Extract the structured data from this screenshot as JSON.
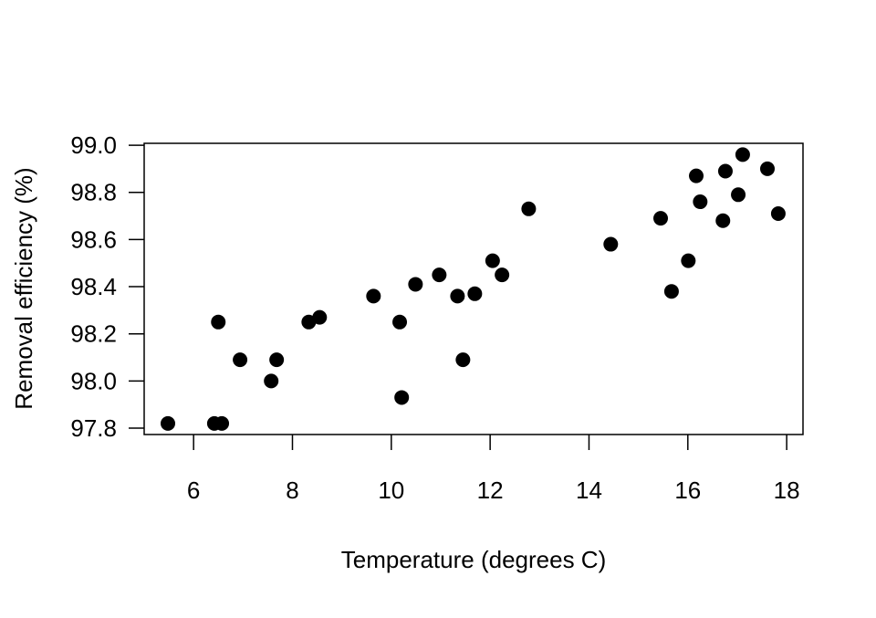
{
  "chart_data": {
    "type": "scatter",
    "title": "",
    "xlabel": "Temperature (degrees C)",
    "ylabel": "Removal efficiency (%)",
    "xlim": [
      5.0,
      18.33
    ],
    "ylim": [
      97.773,
      99.008
    ],
    "xticks": [
      6,
      8,
      10,
      12,
      14,
      16,
      18
    ],
    "xtick_labels": [
      "6",
      "8",
      "10",
      "12",
      "14",
      "16",
      "18"
    ],
    "yticks": [
      97.8,
      98.0,
      98.2,
      98.4,
      98.6,
      98.8,
      99.0
    ],
    "ytick_labels": [
      "97.8",
      "98.0",
      "98.2",
      "98.4",
      "98.6",
      "98.8",
      "99.0"
    ],
    "grid": false,
    "marker_color": "#000000",
    "points": [
      {
        "x": 5.48,
        "y": 97.82
      },
      {
        "x": 6.42,
        "y": 97.82
      },
      {
        "x": 6.57,
        "y": 97.82
      },
      {
        "x": 6.5,
        "y": 98.25
      },
      {
        "x": 6.94,
        "y": 98.09
      },
      {
        "x": 7.57,
        "y": 98.0
      },
      {
        "x": 7.68,
        "y": 98.09
      },
      {
        "x": 8.33,
        "y": 98.25
      },
      {
        "x": 8.55,
        "y": 98.27
      },
      {
        "x": 9.64,
        "y": 98.36
      },
      {
        "x": 10.17,
        "y": 98.25
      },
      {
        "x": 10.21,
        "y": 97.93
      },
      {
        "x": 10.49,
        "y": 98.41
      },
      {
        "x": 10.97,
        "y": 98.45
      },
      {
        "x": 11.34,
        "y": 98.36
      },
      {
        "x": 11.45,
        "y": 98.09
      },
      {
        "x": 11.69,
        "y": 98.37
      },
      {
        "x": 12.05,
        "y": 98.51
      },
      {
        "x": 12.24,
        "y": 98.45
      },
      {
        "x": 12.78,
        "y": 98.73
      },
      {
        "x": 14.44,
        "y": 98.58
      },
      {
        "x": 15.45,
        "y": 98.69
      },
      {
        "x": 15.67,
        "y": 98.38
      },
      {
        "x": 16.01,
        "y": 98.51
      },
      {
        "x": 16.17,
        "y": 98.87
      },
      {
        "x": 16.25,
        "y": 98.76
      },
      {
        "x": 16.71,
        "y": 98.68
      },
      {
        "x": 16.76,
        "y": 98.89
      },
      {
        "x": 17.02,
        "y": 98.79
      },
      {
        "x": 17.11,
        "y": 98.96
      },
      {
        "x": 17.61,
        "y": 98.9
      },
      {
        "x": 17.83,
        "y": 98.71
      }
    ]
  }
}
